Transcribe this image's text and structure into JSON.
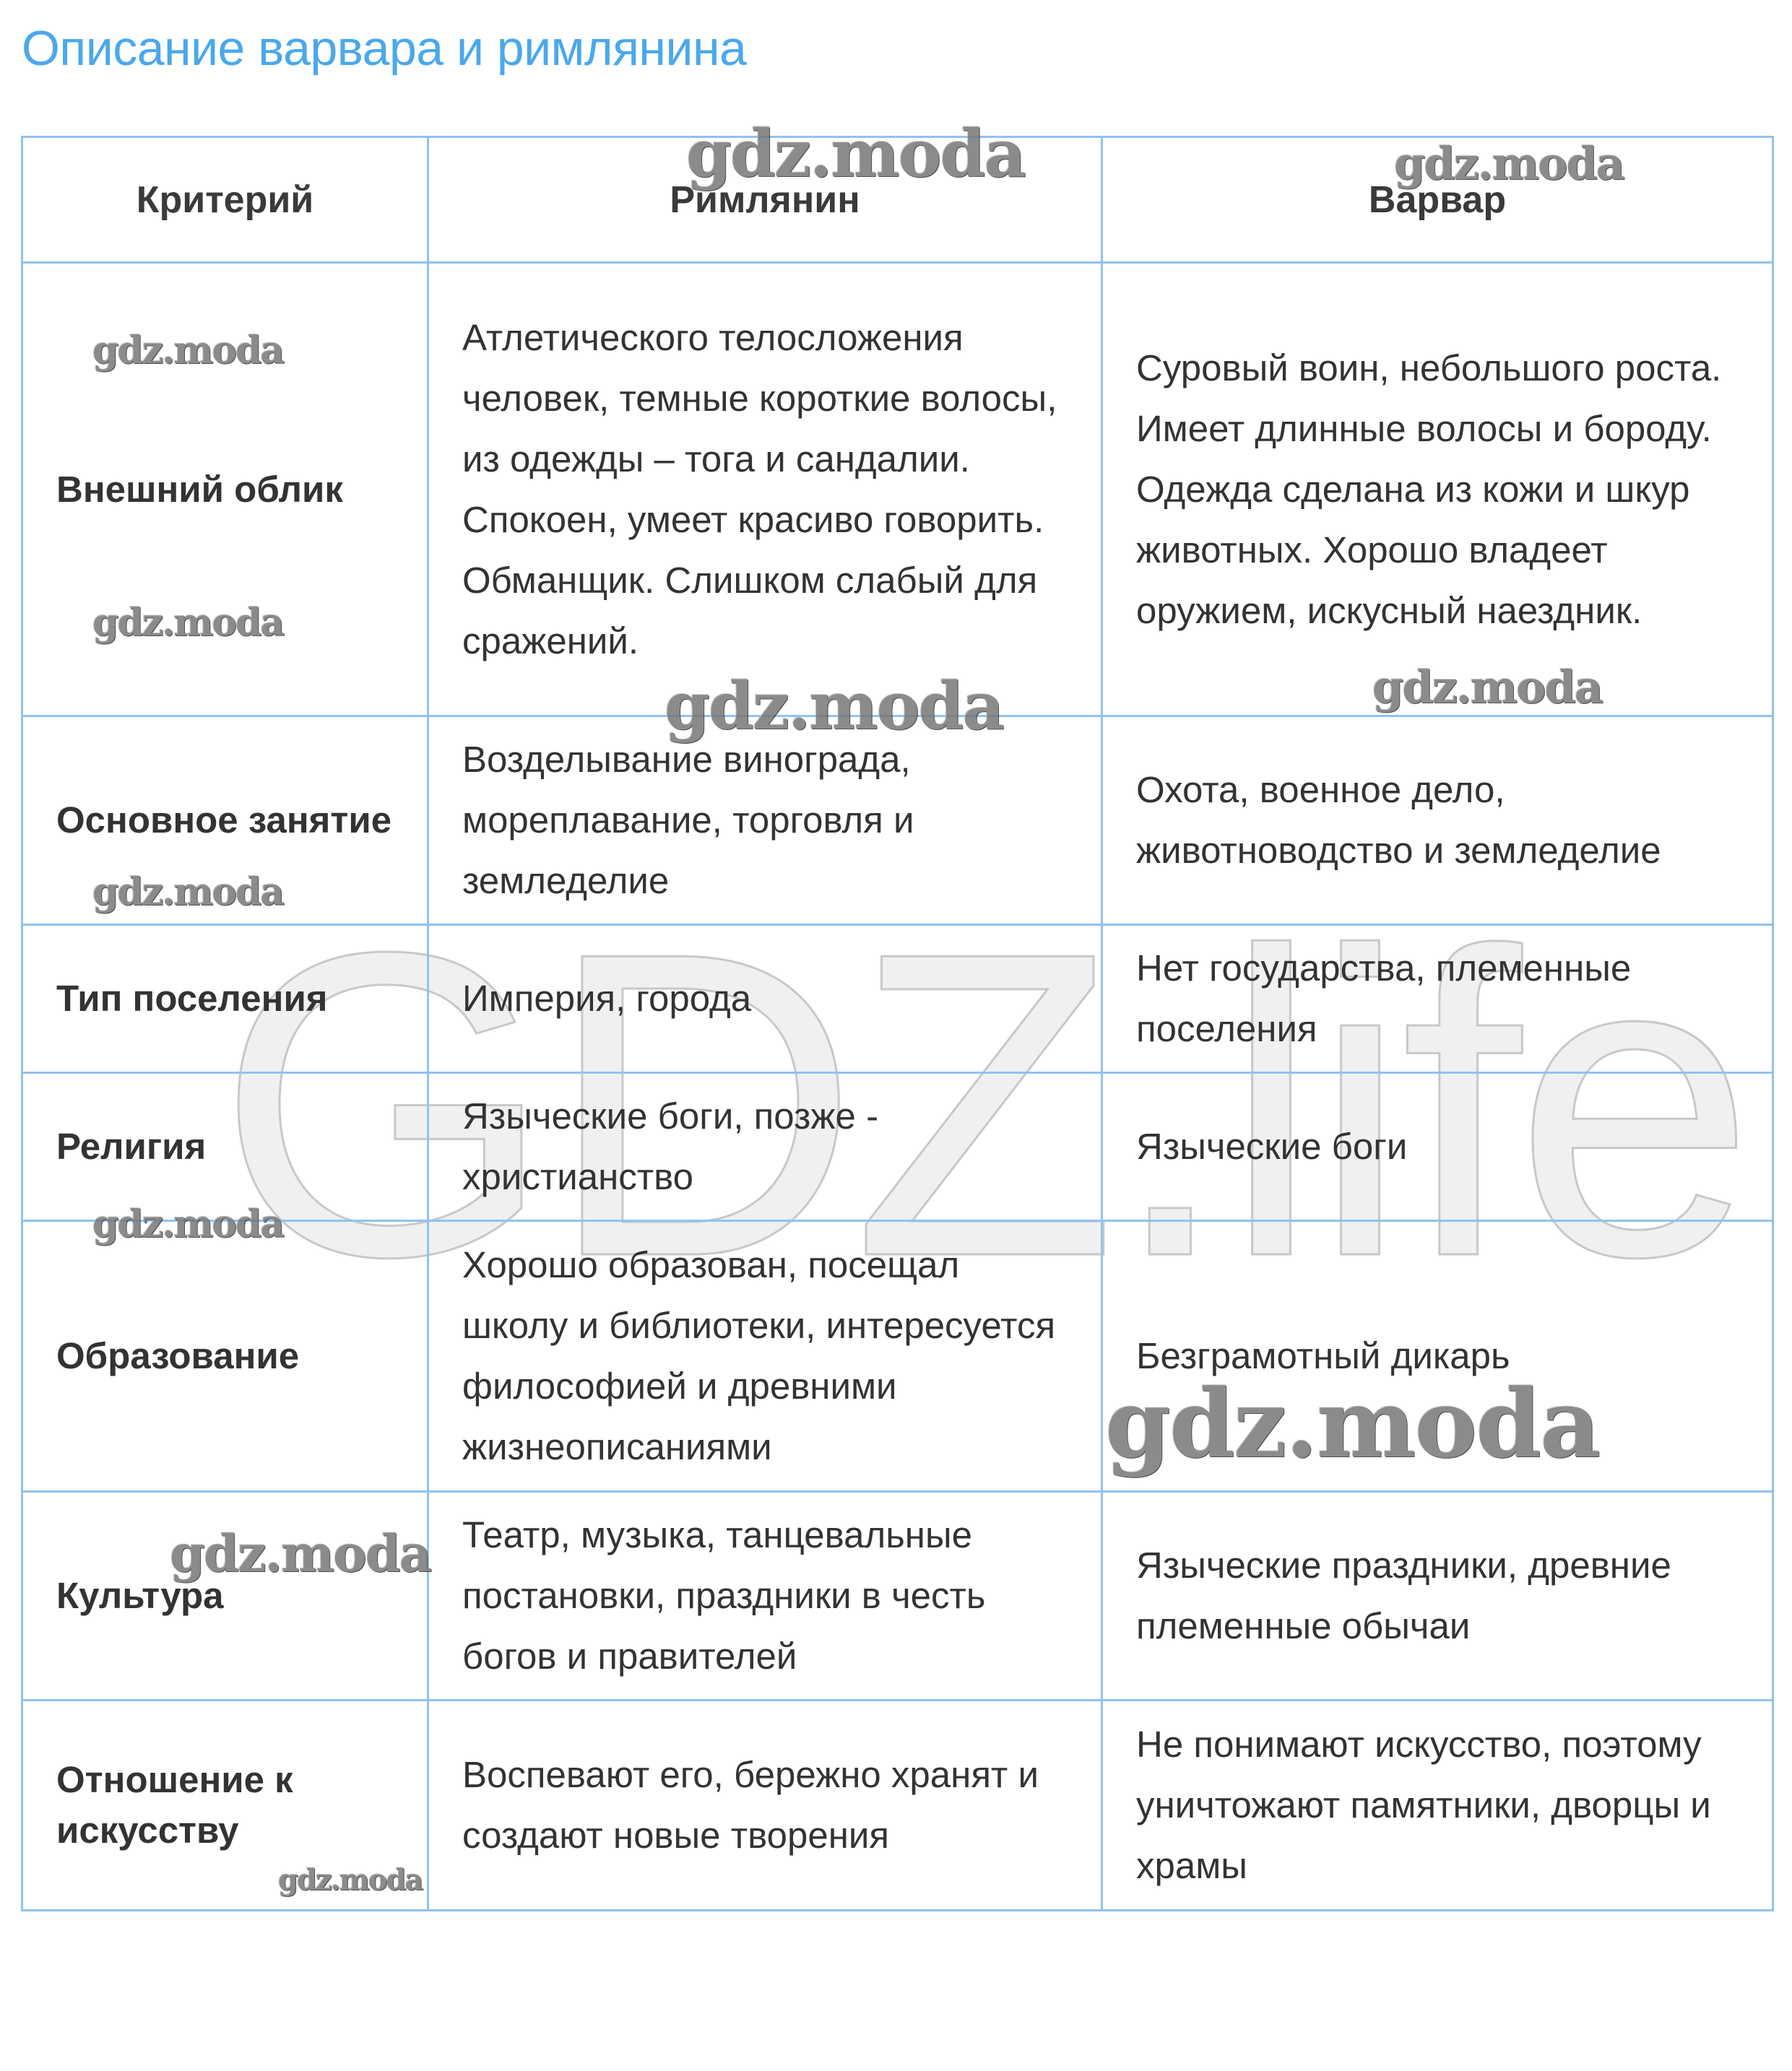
{
  "title": "Описание варвара и римлянина",
  "table": {
    "headers": [
      "Критерий",
      "Римлянин",
      "Варвар"
    ],
    "rows": [
      {
        "criterion": "Внешний облик",
        "roman": "Атлетического телосложения человек, темные короткие волосы, из одежды – тога и сандалии. Спокоен, умеет красиво говорить. Обманщик. Слишком слабый для сражений.",
        "barbarian": "Суровый воин, небольшого роста. Имеет длинные волосы и бороду. Одежда сделана из кожи и шкур животных. Хорошо владеет оружием, искусный наездник."
      },
      {
        "criterion": "Основное занятие",
        "roman": "Возделывание винограда, мореплавание, торговля и земледелие",
        "barbarian": "Охота, военное дело, животноводство и земледелие"
      },
      {
        "criterion": "Тип поселения",
        "roman": "Империя, города",
        "barbarian": "Нет государства, племенные поселения"
      },
      {
        "criterion": "Религия",
        "roman": "Языческие боги, позже - христианство",
        "barbarian": "Языческие боги"
      },
      {
        "criterion": "Образование",
        "roman": "Хорошо образован, посещал школу и библиотеки, интересуется философией и древними жизнеописаниями",
        "barbarian": "Безграмотный дикарь"
      },
      {
        "criterion": "Культура",
        "roman": "Театр, музыка, танцевальные постановки, праздники в честь богов и правителей",
        "barbarian": "Языческие праздники, древние племенные обычаи"
      },
      {
        "criterion": "Отношение к искусству",
        "roman": "Воспевают его, бережно хранят и создают новые творения",
        "barbarian": "Не понимают искусство, поэтому уничтожают памятники, дворцы и храмы"
      }
    ]
  },
  "watermarks": {
    "small": "gdz.moda",
    "large": "GDZ.life"
  },
  "colors": {
    "title": "#4aa8ec",
    "border": "#8fc3f0",
    "text": "#333333"
  }
}
